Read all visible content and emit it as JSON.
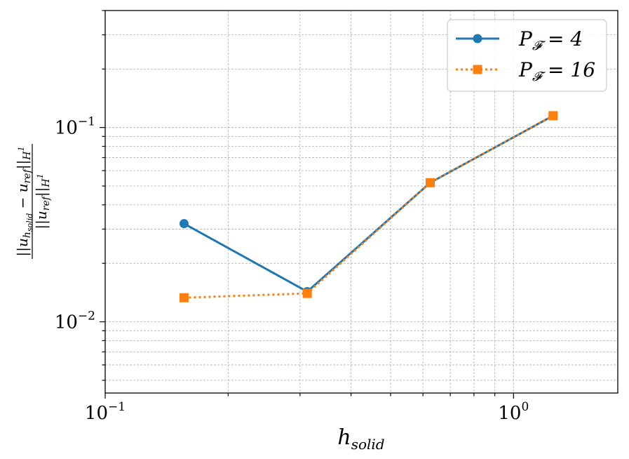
{
  "chart_data": {
    "type": "line",
    "xscale": "log",
    "yscale": "log",
    "xlim": [
      0.1,
      1.8
    ],
    "ylim": [
      0.0043,
      0.4
    ],
    "grid": "major and minor, dashed",
    "xlabel": {
      "base": "h",
      "sub": "solid"
    },
    "ylabel": {
      "numerator": "||u",
      "numerator_sub": "h",
      "numerator_subsub": "solid",
      "numerator_mid": " − u",
      "numerator_mid_sub": "ref",
      "numerator_end": "||",
      "numerator_end_sub": "H",
      "numerator_end_sup": "1",
      "denominator": "||u",
      "denominator_sub": "ref",
      "denominator_end": "||",
      "denominator_end_sub": "H",
      "denominator_end_sup": "1"
    },
    "x_ticks": [
      {
        "value": 0.1,
        "base": "10",
        "exp": "−1"
      },
      {
        "value": 1.0,
        "base": "10",
        "exp": "0"
      }
    ],
    "y_ticks": [
      {
        "value": 0.01,
        "base": "10",
        "exp": "−2"
      },
      {
        "value": 0.1,
        "base": "10",
        "exp": "−1"
      }
    ],
    "legend_position": "top-right",
    "series": [
      {
        "name": "P_F = 4",
        "label_main": "P",
        "label_sub": "𝓕",
        "label_rest": " = 4",
        "color": "#1f77b4",
        "line_style": "solid",
        "marker": "circle",
        "x": [
          0.156,
          0.3125,
          0.625,
          1.25
        ],
        "y": [
          0.032,
          0.0143,
          0.052,
          0.115
        ]
      },
      {
        "name": "P_F = 16",
        "label_main": "P",
        "label_sub": "𝓕",
        "label_rest": " = 16",
        "color": "#ff7f0e",
        "line_style": "dotted",
        "marker": "square",
        "x": [
          0.156,
          0.3125,
          0.625,
          1.25
        ],
        "y": [
          0.0133,
          0.014,
          0.052,
          0.115
        ]
      }
    ]
  }
}
